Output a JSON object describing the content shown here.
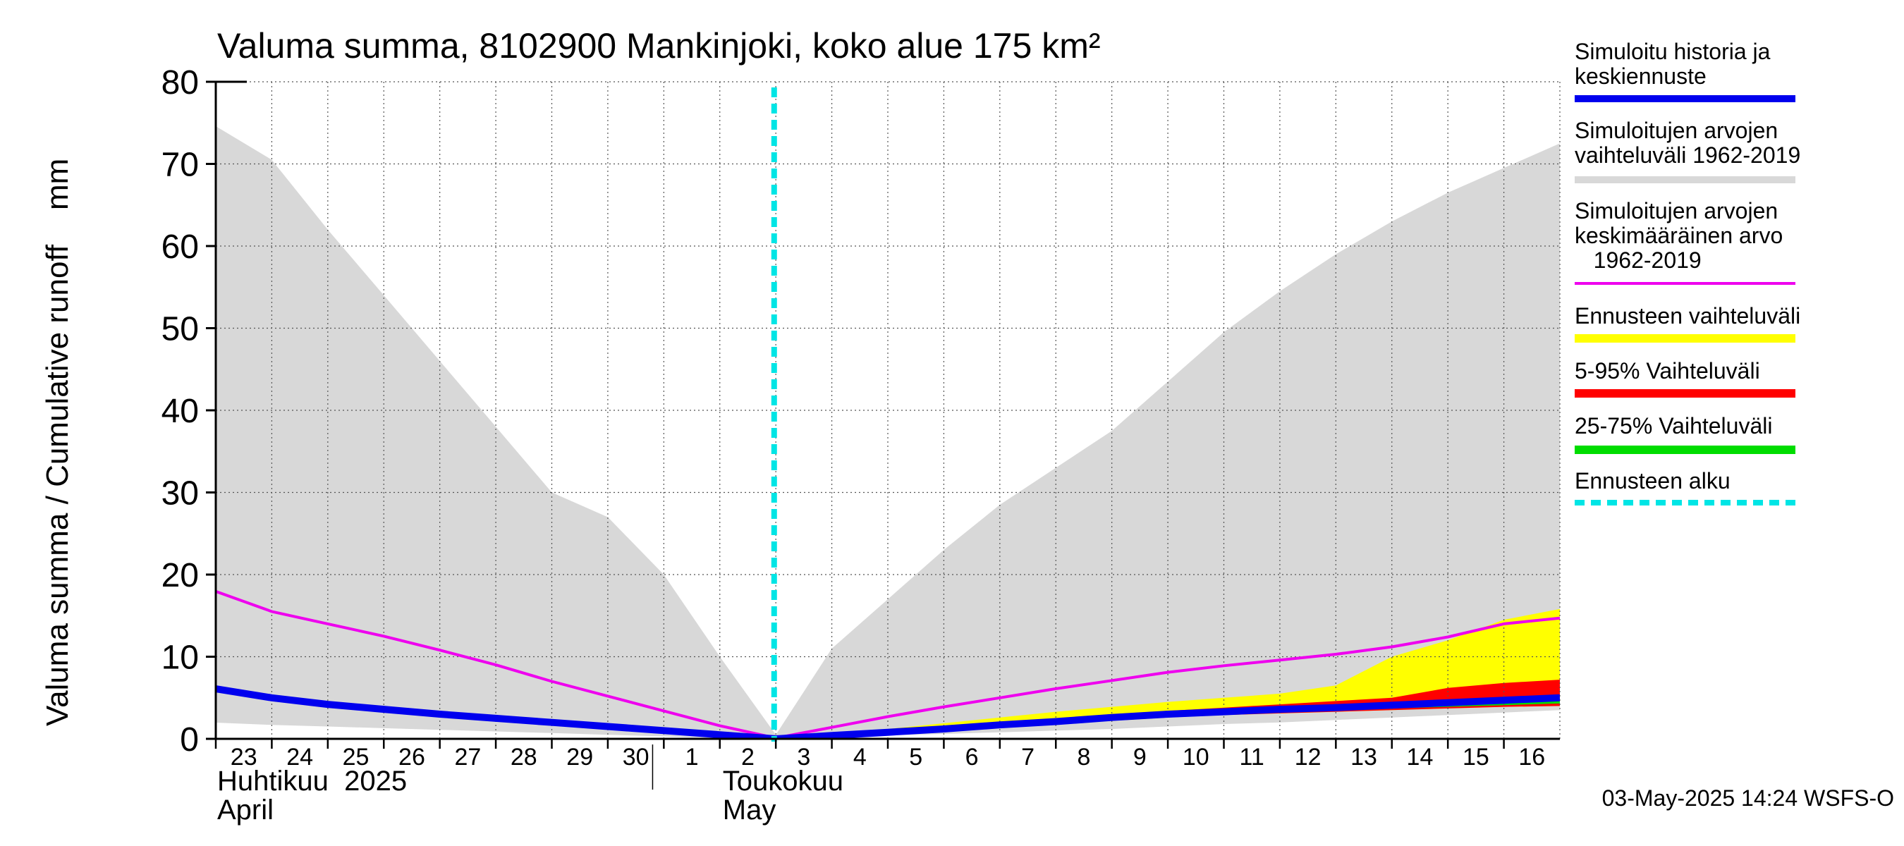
{
  "chart_data": {
    "type": "area",
    "title": "Valuma summa, 8102900 Mankinjoki, koko alue 175 km²",
    "ylabel": "Valuma summa / Cumulative runoff    mm",
    "ylim": [
      0,
      80
    ],
    "yticks": [
      0,
      10,
      20,
      30,
      40,
      50,
      60,
      70,
      80
    ],
    "x_day_index_range": [
      0,
      24
    ],
    "x_ticks": [
      {
        "label": "23",
        "day": 0
      },
      {
        "label": "24",
        "day": 1
      },
      {
        "label": "25",
        "day": 2
      },
      {
        "label": "26",
        "day": 3
      },
      {
        "label": "27",
        "day": 4
      },
      {
        "label": "28",
        "day": 5
      },
      {
        "label": "29",
        "day": 6
      },
      {
        "label": "30",
        "day": 7
      },
      {
        "label": "1",
        "day": 8
      },
      {
        "label": "2",
        "day": 9
      },
      {
        "label": "3",
        "day": 10
      },
      {
        "label": "4",
        "day": 11
      },
      {
        "label": "5",
        "day": 12
      },
      {
        "label": "6",
        "day": 13
      },
      {
        "label": "7",
        "day": 14
      },
      {
        "label": "8",
        "day": 15
      },
      {
        "label": "9",
        "day": 16
      },
      {
        "label": "10",
        "day": 17
      },
      {
        "label": "11",
        "day": 18
      },
      {
        "label": "12",
        "day": 19
      },
      {
        "label": "13",
        "day": 20
      },
      {
        "label": "14",
        "day": 21
      },
      {
        "label": "15",
        "day": 22
      },
      {
        "label": "16",
        "day": 23
      }
    ],
    "month_labels": {
      "april_fi": "Huhtikuu  2025",
      "april_en": "April",
      "may_fi": "Toukokuu",
      "may_en": "May"
    },
    "month_separator_day": 7.8,
    "forecast_start_day": 9.97,
    "history_range": {
      "name": "Simuloitujen arvojen vaihteluväli 1962-2019",
      "color": "#d8d8d8",
      "x": [
        -0.1,
        1,
        2,
        3,
        4,
        5,
        6,
        7,
        8,
        9,
        10,
        11,
        12,
        13,
        14,
        15,
        16,
        17,
        18,
        19,
        20,
        21,
        22,
        23,
        24
      ],
      "upper": [
        75,
        70.5,
        62,
        54,
        46,
        38,
        30,
        27,
        20,
        10,
        0.5,
        11,
        17,
        23,
        28.5,
        33,
        37.5,
        43.5,
        49.5,
        54.5,
        59,
        63,
        66.5,
        69.5,
        72.5
      ],
      "lower": [
        2,
        1.7,
        1.5,
        1.3,
        1.1,
        0.9,
        0.7,
        0.5,
        0.3,
        0.1,
        0,
        0.2,
        0.4,
        0.6,
        0.8,
        1,
        1.2,
        1.5,
        1.8,
        2,
        2.3,
        2.6,
        2.9,
        3.2,
        3.5
      ]
    },
    "forecast_range": {
      "name": "Ennusteen vaihteluväli",
      "color": "#ffff00",
      "x": [
        10,
        11,
        12,
        13,
        14,
        15,
        16,
        17,
        18,
        19,
        20,
        21,
        22,
        23,
        24
      ],
      "upper": [
        0,
        0.6,
        1.2,
        1.9,
        2.6,
        3.3,
        3.9,
        4.5,
        5,
        5.5,
        6.5,
        10,
        12,
        14.5,
        15.8
      ],
      "lower": [
        0,
        0.3,
        0.6,
        1,
        1.4,
        1.8,
        2.2,
        2.6,
        2.9,
        3.1,
        3.3,
        3.5,
        3.7,
        3.9,
        4
      ]
    },
    "p5_95_range": {
      "name": "5-95% Vaihteluväli",
      "color": "#ff0000",
      "x": [
        10,
        11,
        12,
        13,
        14,
        15,
        16,
        17,
        18,
        19,
        20,
        21,
        22,
        23,
        24
      ],
      "upper": [
        0,
        0.5,
        1,
        1.5,
        2,
        2.5,
        3,
        3.4,
        3.8,
        4.2,
        4.6,
        5,
        6.2,
        6.8,
        7.2
      ],
      "lower": [
        0,
        0.3,
        0.6,
        1,
        1.4,
        1.8,
        2.2,
        2.6,
        2.9,
        3.1,
        3.3,
        3.5,
        3.7,
        3.9,
        4
      ]
    },
    "p25_75_range": {
      "name": "25-75% Vaihteluväli",
      "color": "#00dd00",
      "x": [
        10,
        11,
        12,
        13,
        14,
        15,
        16,
        17,
        18,
        19,
        20,
        21,
        22,
        23,
        24
      ],
      "upper": [
        0,
        0.45,
        0.9,
        1.35,
        1.8,
        2.25,
        2.7,
        3.1,
        3.4,
        3.7,
        4,
        4.3,
        4.6,
        4.9,
        5.2
      ],
      "lower": [
        0,
        0.4,
        0.8,
        1.2,
        1.6,
        2,
        2.4,
        2.8,
        3.1,
        3.3,
        3.5,
        3.7,
        3.9,
        4.1,
        4.3
      ]
    },
    "series": [
      {
        "name": "Simuloitujen arvojen keskimääräinen arvo 1962-2019",
        "color": "#ee00ee",
        "x": [
          -0.1,
          1,
          2,
          3,
          4,
          5,
          6,
          7,
          8,
          9,
          10,
          11,
          12,
          13,
          14,
          15,
          16,
          17,
          18,
          19,
          20,
          21,
          22,
          23,
          24
        ],
        "values": [
          18.2,
          15.5,
          14,
          12.5,
          10.8,
          9,
          7,
          5.2,
          3.4,
          1.6,
          0.1,
          1.4,
          2.7,
          3.9,
          5,
          6.1,
          7.1,
          8.1,
          8.9,
          9.6,
          10.3,
          11.2,
          12.4,
          14,
          14.7
        ]
      },
      {
        "name": "Simuloitu historia ja keskiennuste",
        "color": "#0000ee",
        "x": [
          -0.1,
          1,
          2,
          3,
          4,
          5,
          6,
          7,
          8,
          9,
          10,
          11,
          12,
          13,
          14,
          15,
          16,
          17,
          18,
          19,
          20,
          21,
          22,
          23,
          24
        ],
        "values": [
          6.2,
          5,
          4.2,
          3.6,
          3,
          2.5,
          2,
          1.5,
          1,
          0.5,
          0,
          0.4,
          0.8,
          1.2,
          1.7,
          2.1,
          2.6,
          3,
          3.3,
          3.6,
          3.8,
          4.1,
          4.4,
          4.7,
          5
        ]
      }
    ],
    "legend": [
      {
        "label": "Simuloitu historia ja\nkeskiennuste",
        "color": "#0000ee",
        "style": "solid"
      },
      {
        "label": "Simuloitujen arvojen\nvaihteluväli 1962-2019",
        "color": "#d8d8d8",
        "style": "solid"
      },
      {
        "label": "Simuloitujen arvojen\nkeskimääräinen arvo\n   1962-2019",
        "color": "#ee00ee",
        "style": "thin"
      },
      {
        "label": "Ennusteen vaihteluväli",
        "color": "#ffff00",
        "style": "solid"
      },
      {
        "label": "5-95% Vaihteluväli",
        "color": "#ff0000",
        "style": "solid"
      },
      {
        "label": "25-75% Vaihteluväli",
        "color": "#00dd00",
        "style": "solid"
      },
      {
        "label": "Ennusteen alku",
        "color": "#00e5e5",
        "style": "dashed"
      }
    ],
    "legend_position": "right",
    "grid": true,
    "footer": "03-May-2025 14:24 WSFS-O"
  }
}
